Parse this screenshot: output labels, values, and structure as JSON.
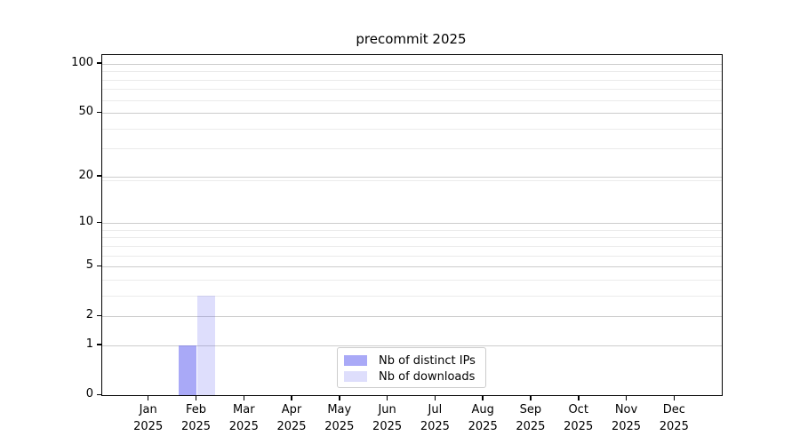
{
  "chart_data": {
    "type": "bar",
    "title": "precommit 2025",
    "categories": [
      "Jan 2025",
      "Feb 2025",
      "Mar 2025",
      "Apr 2025",
      "May 2025",
      "Jun 2025",
      "Jul 2025",
      "Aug 2025",
      "Sep 2025",
      "Oct 2025",
      "Nov 2025",
      "Dec 2025"
    ],
    "x_tick_labels": [
      {
        "line1": "Jan",
        "line2": "2025"
      },
      {
        "line1": "Feb",
        "line2": "2025"
      },
      {
        "line1": "Mar",
        "line2": "2025"
      },
      {
        "line1": "Apr",
        "line2": "2025"
      },
      {
        "line1": "May",
        "line2": "2025"
      },
      {
        "line1": "Jun",
        "line2": "2025"
      },
      {
        "line1": "Jul",
        "line2": "2025"
      },
      {
        "line1": "Aug",
        "line2": "2025"
      },
      {
        "line1": "Sep",
        "line2": "2025"
      },
      {
        "line1": "Oct",
        "line2": "2025"
      },
      {
        "line1": "Nov",
        "line2": "2025"
      },
      {
        "line1": "Dec",
        "line2": "2025"
      }
    ],
    "series": [
      {
        "name": "Nb of distinct IPs",
        "color": "rgba(90,90,240,0.52)",
        "values": [
          0,
          1,
          0,
          0,
          0,
          0,
          0,
          0,
          0,
          0,
          0,
          0
        ]
      },
      {
        "name": "Nb of downloads",
        "color": "rgba(90,90,240,0.20)",
        "values": [
          0,
          3,
          0,
          0,
          0,
          0,
          0,
          0,
          0,
          0,
          0,
          0
        ]
      }
    ],
    "y_scale": "log1p",
    "y_ticks": [
      0,
      1,
      2,
      5,
      10,
      20,
      50,
      100
    ],
    "y_minor_ticks": [
      3,
      4,
      6,
      7,
      8,
      9,
      19,
      30,
      40,
      60,
      70,
      80,
      90
    ],
    "ylim": [
      0,
      113
    ],
    "xlabel": "",
    "ylabel": "",
    "grid": "horizontal",
    "legend_position": "lower center",
    "background_color": "#ffffff",
    "axis_color": "#000000",
    "grid_major_color": "#cccccc",
    "grid_minor_color": "#ebebeb"
  }
}
